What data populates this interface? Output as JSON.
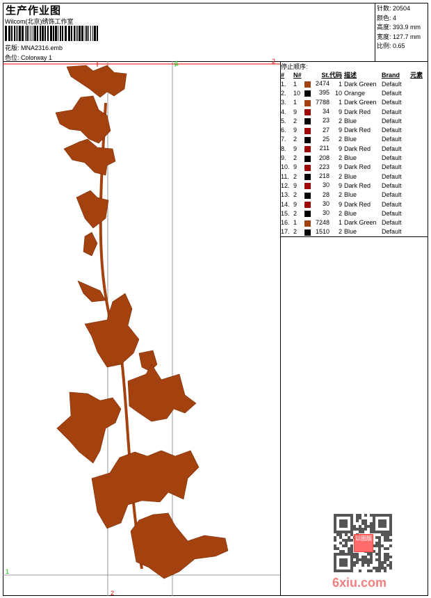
{
  "header": {
    "title": "生产作业图",
    "company": "Wilcom(北京)绣饰工作室",
    "design_label": "花版:",
    "design_value": "MNA2316.emb",
    "colorway_label": "色位:",
    "colorway_value": "Colorway 1"
  },
  "info": [
    {
      "label": "针数:",
      "value": "20504"
    },
    {
      "label": "颜色:",
      "value": "4"
    },
    {
      "label": "高度:",
      "value": "393.9 mm"
    },
    {
      "label": "宽度:",
      "value": "127.7 mm"
    },
    {
      "label": "比例:",
      "value": "0.65"
    }
  ],
  "stops": {
    "title": "停止顺序:",
    "columns": [
      "#",
      "N#",
      "St.",
      "代码",
      "描述",
      "Brand",
      "元素"
    ],
    "rows": [
      {
        "n": "1.",
        "needle": "1",
        "color": "#a3410f",
        "st": "2474",
        "code": "1",
        "desc": "Dark Green",
        "brand": "Default"
      },
      {
        "n": "2.",
        "needle": "10",
        "color": "#000000",
        "st": "395",
        "code": "10",
        "desc": "Orange",
        "brand": "Default"
      },
      {
        "n": "3.",
        "needle": "1",
        "color": "#a3410f",
        "st": "7788",
        "code": "1",
        "desc": "Dark Green",
        "brand": "Default"
      },
      {
        "n": "4.",
        "needle": "9",
        "color": "#a00808",
        "st": "34",
        "code": "9",
        "desc": "Dark Red",
        "brand": "Default"
      },
      {
        "n": "5.",
        "needle": "2",
        "color": "#000000",
        "st": "23",
        "code": "2",
        "desc": "Blue",
        "brand": "Default"
      },
      {
        "n": "6.",
        "needle": "9",
        "color": "#a00808",
        "st": "27",
        "code": "9",
        "desc": "Dark Red",
        "brand": "Default"
      },
      {
        "n": "7.",
        "needle": "2",
        "color": "#000000",
        "st": "25",
        "code": "2",
        "desc": "Blue",
        "brand": "Default"
      },
      {
        "n": "8.",
        "needle": "9",
        "color": "#a00808",
        "st": "211",
        "code": "9",
        "desc": "Dark Red",
        "brand": "Default"
      },
      {
        "n": "9.",
        "needle": "2",
        "color": "#000000",
        "st": "208",
        "code": "2",
        "desc": "Blue",
        "brand": "Default"
      },
      {
        "n": "10.",
        "needle": "9",
        "color": "#a00808",
        "st": "223",
        "code": "9",
        "desc": "Dark Red",
        "brand": "Default"
      },
      {
        "n": "11.",
        "needle": "2",
        "color": "#000000",
        "st": "218",
        "code": "2",
        "desc": "Blue",
        "brand": "Default"
      },
      {
        "n": "12.",
        "needle": "9",
        "color": "#a00808",
        "st": "30",
        "code": "9",
        "desc": "Dark Red",
        "brand": "Default"
      },
      {
        "n": "13.",
        "needle": "2",
        "color": "#000000",
        "st": "28",
        "code": "2",
        "desc": "Blue",
        "brand": "Default"
      },
      {
        "n": "14.",
        "needle": "9",
        "color": "#a00808",
        "st": "30",
        "code": "9",
        "desc": "Dark Red",
        "brand": "Default"
      },
      {
        "n": "15.",
        "needle": "2",
        "color": "#000000",
        "st": "30",
        "code": "2",
        "desc": "Blue",
        "brand": "Default"
      },
      {
        "n": "16.",
        "needle": "1",
        "color": "#a3410f",
        "st": "7248",
        "code": "1",
        "desc": "Dark Green",
        "brand": "Default"
      },
      {
        "n": "17.",
        "needle": "2",
        "color": "#000000",
        "st": "1510",
        "code": "2",
        "desc": "Blue",
        "brand": "Default"
      }
    ]
  },
  "guides": {
    "top_green": "1",
    "left_green": "1",
    "bottom_red": "2",
    "top_red": "2"
  },
  "watermark": {
    "text": "6xiu.com",
    "stamp": "以图版"
  },
  "colors": {
    "thread": "#a3410f",
    "guide_red": "#ff0000",
    "guide_green": "#00cc00"
  }
}
